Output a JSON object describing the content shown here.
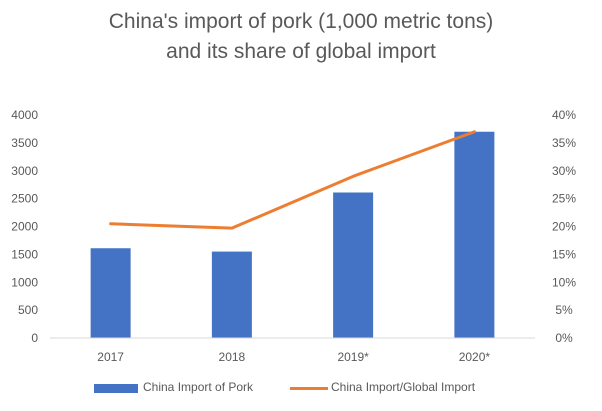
{
  "chart_data": {
    "type": "bar",
    "title": "China's import of pork (1,000 metric tons)",
    "subtitle": "and its share of global import",
    "categories": [
      "2017",
      "2018",
      "2019*",
      "2020*"
    ],
    "series": [
      {
        "name": "China Import of Pork",
        "type": "bar",
        "axis": "left",
        "values": [
          1610,
          1550,
          2610,
          3700
        ],
        "color": "#4472C4"
      },
      {
        "name": "China Import/Global Import",
        "type": "line",
        "axis": "right",
        "values": [
          0.205,
          0.197,
          0.29,
          0.37
        ],
        "color": "#ED7D31"
      }
    ],
    "ylim": [
      0,
      4000
    ],
    "y2lim": [
      0,
      0.4
    ],
    "y_ticks": [
      "0",
      "500",
      "1000",
      "1500",
      "2000",
      "2500",
      "3000",
      "3500",
      "4000"
    ],
    "y2_ticks": [
      "0%",
      "5%",
      "10%",
      "15%",
      "20%",
      "25%",
      "30%",
      "35%",
      "40%"
    ],
    "grid": false,
    "legend_position": "bottom"
  }
}
